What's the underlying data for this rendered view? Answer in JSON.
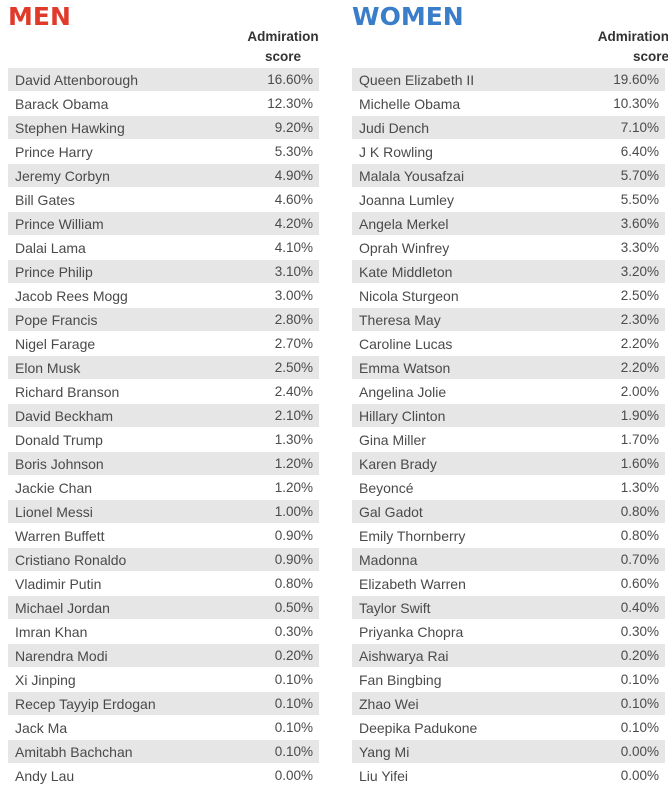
{
  "chart_data": {
    "type": "table",
    "columns_header": "Admiration score",
    "groups": [
      {
        "title": "MEN",
        "header_line1": "Admiration",
        "header_line2": "score",
        "rows": [
          {
            "name": "David Attenborough",
            "value": "16.60%"
          },
          {
            "name": "Barack Obama",
            "value": "12.30%"
          },
          {
            "name": "Stephen Hawking",
            "value": "9.20%"
          },
          {
            "name": "Prince Harry",
            "value": "5.30%"
          },
          {
            "name": "Jeremy Corbyn",
            "value": "4.90%"
          },
          {
            "name": "Bill Gates",
            "value": "4.60%"
          },
          {
            "name": "Prince William",
            "value": "4.20%"
          },
          {
            "name": "Dalai Lama",
            "value": "4.10%"
          },
          {
            "name": "Prince Philip",
            "value": "3.10%"
          },
          {
            "name": "Jacob Rees Mogg",
            "value": "3.00%"
          },
          {
            "name": "Pope Francis",
            "value": "2.80%"
          },
          {
            "name": "Nigel Farage",
            "value": "2.70%"
          },
          {
            "name": "Elon Musk",
            "value": "2.50%"
          },
          {
            "name": "Richard Branson",
            "value": "2.40%"
          },
          {
            "name": "David Beckham",
            "value": "2.10%"
          },
          {
            "name": "Donald Trump",
            "value": "1.30%"
          },
          {
            "name": "Boris Johnson",
            "value": "1.20%"
          },
          {
            "name": "Jackie Chan",
            "value": "1.20%"
          },
          {
            "name": "Lionel Messi",
            "value": "1.00%"
          },
          {
            "name": "Warren Buffett",
            "value": "0.90%"
          },
          {
            "name": "Cristiano Ronaldo",
            "value": "0.90%"
          },
          {
            "name": "Vladimir Putin",
            "value": "0.80%"
          },
          {
            "name": "Michael Jordan",
            "value": "0.50%"
          },
          {
            "name": "Imran Khan",
            "value": "0.30%"
          },
          {
            "name": "Narendra Modi",
            "value": "0.20%"
          },
          {
            "name": "Xi Jinping",
            "value": "0.10%"
          },
          {
            "name": "Recep Tayyip Erdogan",
            "value": "0.10%"
          },
          {
            "name": "Jack Ma",
            "value": "0.10%"
          },
          {
            "name": "Amitabh Bachchan",
            "value": "0.10%"
          },
          {
            "name": "Andy Lau",
            "value": "0.00%"
          }
        ]
      },
      {
        "title": "WOMEN",
        "header_line1": "Admiration",
        "header_line2": "score",
        "rows": [
          {
            "name": "Queen Elizabeth II",
            "value": "19.60%"
          },
          {
            "name": "Michelle Obama",
            "value": "10.30%"
          },
          {
            "name": "Judi Dench",
            "value": "7.10%"
          },
          {
            "name": "J K Rowling",
            "value": "6.40%"
          },
          {
            "name": "Malala Yousafzai",
            "value": "5.70%"
          },
          {
            "name": "Joanna Lumley",
            "value": "5.50%"
          },
          {
            "name": "Angela Merkel",
            "value": "3.60%"
          },
          {
            "name": "Oprah Winfrey",
            "value": "3.30%"
          },
          {
            "name": "Kate Middleton",
            "value": "3.20%"
          },
          {
            "name": "Nicola Sturgeon",
            "value": "2.50%"
          },
          {
            "name": "Theresa May",
            "value": "2.30%"
          },
          {
            "name": "Caroline Lucas",
            "value": "2.20%"
          },
          {
            "name": "Emma Watson",
            "value": "2.20%"
          },
          {
            "name": "Angelina Jolie",
            "value": "2.00%"
          },
          {
            "name": "Hillary Clinton",
            "value": "1.90%"
          },
          {
            "name": "Gina Miller",
            "value": "1.70%"
          },
          {
            "name": "Karen Brady",
            "value": "1.60%"
          },
          {
            "name": "Beyoncé",
            "value": "1.30%"
          },
          {
            "name": "Gal Gadot",
            "value": "0.80%"
          },
          {
            "name": "Emily Thornberry",
            "value": "0.80%"
          },
          {
            "name": "Madonna",
            "value": "0.70%"
          },
          {
            "name": "Elizabeth Warren",
            "value": "0.60%"
          },
          {
            "name": "Taylor Swift",
            "value": "0.40%"
          },
          {
            "name": "Priyanka Chopra",
            "value": "0.30%"
          },
          {
            "name": "Aishwarya Rai",
            "value": "0.20%"
          },
          {
            "name": "Fan Bingbing",
            "value": "0.10%"
          },
          {
            "name": "Zhao Wei",
            "value": "0.10%"
          },
          {
            "name": "Deepika Padukone",
            "value": "0.10%"
          },
          {
            "name": "Yang Mi",
            "value": "0.00%"
          },
          {
            "name": "Liu Yifei",
            "value": "0.00%"
          }
        ]
      }
    ]
  },
  "colors": {
    "men_title": "#e03a2b",
    "women_title": "#3a7dc9",
    "row_shade": "#e6e6e6",
    "text": "#4a4a4a"
  }
}
